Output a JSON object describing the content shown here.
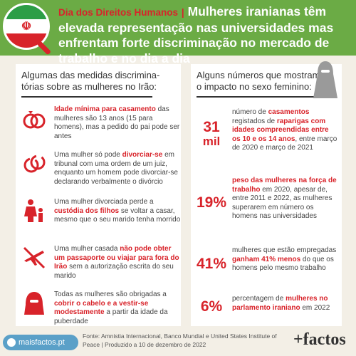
{
  "header": {
    "tag": "Dia dos Direitos Humanos",
    "separator": "|",
    "title": "Mulheres iranianas têm elevada representação nas universidades mas enfrentam forte discriminação no mercado de trabalho e no dia a dia"
  },
  "left_panel": {
    "title_line1": "Algumas das medidas discrimina-",
    "title_line2": "tórias sobre as mulheres no Irão:",
    "items": [
      {
        "icon": "wedding-rings-icon",
        "parts": [
          [
            "b",
            "Idade mínima para casamento"
          ],
          [
            "t",
            " das mulheres são 13 anos (15 para homens), mas a pedido do pai pode ser antes"
          ]
        ]
      },
      {
        "icon": "broken-rings-icon",
        "parts": [
          [
            "t",
            "Uma mulher só pode "
          ],
          [
            "b",
            "divorciar-se"
          ],
          [
            "t",
            " em tribunal com uma ordem de um juiz, enquanto um homem pode divorciar-se declarando verbalmente o divórcio"
          ]
        ]
      },
      {
        "icon": "mother-child-icon",
        "parts": [
          [
            "t",
            "Uma mulher divorciada perde a "
          ],
          [
            "b",
            "custódia dos filhos"
          ],
          [
            "t",
            " se voltar a casar, mesmo que o seu marido tenha morrido"
          ]
        ]
      },
      {
        "icon": "no-flight-icon",
        "parts": [
          [
            "t",
            "Uma mulher casada "
          ],
          [
            "b",
            "não pode obter um passaporte ou viajar para fora do Irão"
          ],
          [
            "t",
            " sem a autorização escrita do seu marido"
          ]
        ]
      },
      {
        "icon": "veiled-woman-icon",
        "parts": [
          [
            "t",
            "Todas as mulheres são obrigadas a "
          ],
          [
            "b",
            "cobrir o cabelo e a vestir-se modestamente"
          ],
          [
            "t",
            " a partir da idade da puberdade"
          ]
        ]
      }
    ]
  },
  "right_panel": {
    "title_line1": "Alguns números que mostram",
    "title_line2": "o impacto no sexo feminino:",
    "stats": [
      {
        "value": "31",
        "unit": "mil",
        "parts": [
          [
            "t",
            "número de "
          ],
          [
            "b",
            "casamentos"
          ],
          [
            "t",
            " registados de "
          ],
          [
            "b",
            "raparigas com idades compreendidas entre os 10 e os 14 anos"
          ],
          [
            "t",
            ", entre março de 2020 e março de 2021"
          ]
        ]
      },
      {
        "value": "19%",
        "unit": "",
        "parts": [
          [
            "b",
            "peso das mulheres na força de trabalho"
          ],
          [
            "t",
            " em 2020, apesar de, entre 2011 e 2022, as mulheres superarem em número os homens nas universidades"
          ]
        ]
      },
      {
        "value": "41%",
        "unit": "",
        "parts": [
          [
            "t",
            "mulheres que estão empregadas "
          ],
          [
            "b",
            "ganham 41% menos"
          ],
          [
            "t",
            " do que os homens pelo mesmo trabalho"
          ]
        ]
      },
      {
        "value": "6%",
        "unit": "",
        "parts": [
          [
            "t",
            "percentagem de "
          ],
          [
            "b",
            "mulheres no parlamento iraniano"
          ],
          [
            "t",
            " em 2022"
          ]
        ]
      }
    ]
  },
  "footer": {
    "site": "maisfactos.pt",
    "source": "Fonte: Amnistia Internacional, Banco Mundial e United States Institute of Peace | Produzido a 10 de dezembro de 2022",
    "brand": "+factos"
  },
  "colors": {
    "header_bg": "#6bab45",
    "accent": "#d8232a",
    "page_bg": "#f3efe6"
  }
}
